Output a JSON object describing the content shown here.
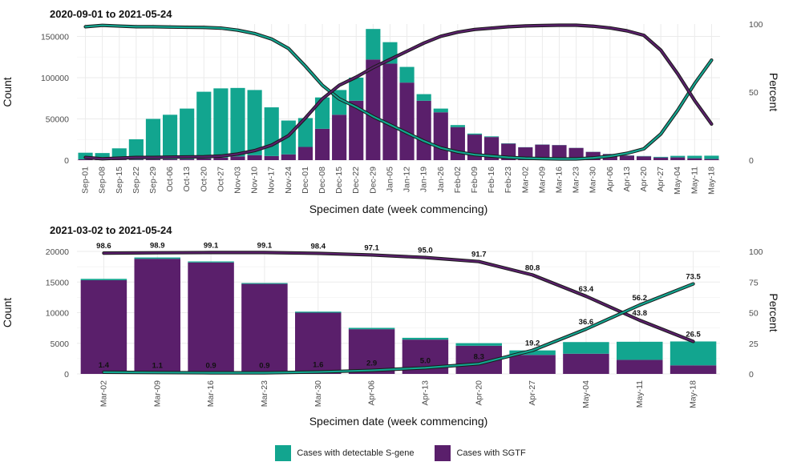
{
  "colors": {
    "sgene": "#12a58f",
    "sgtf": "#5a1f6b",
    "grid": "#ebebeb"
  },
  "legend": {
    "sgene": "Cases with detectable S-gene",
    "sgtf": "Cases with SGTF"
  },
  "chart_data": [
    {
      "type": "bar",
      "stacked": true,
      "title": "2020-09-01 to 2021-05-24",
      "xlabel": "Specimen date (week commencing)",
      "ylabel": "Count",
      "y2label": "Percent",
      "ylim": [
        0,
        165000
      ],
      "yticks": [
        0,
        50000,
        100000,
        150000
      ],
      "y2lim": [
        0,
        100
      ],
      "y2ticks": [
        0,
        50,
        100
      ],
      "categories": [
        "Sep-01",
        "Sep-08",
        "Sep-15",
        "Sep-22",
        "Sep-29",
        "Oct-06",
        "Oct-13",
        "Oct-20",
        "Oct-27",
        "Nov-03",
        "Nov-10",
        "Nov-17",
        "Nov-24",
        "Dec-01",
        "Dec-08",
        "Dec-15",
        "Dec-22",
        "Dec-29",
        "Jan-05",
        "Jan-12",
        "Jan-19",
        "Jan-26",
        "Feb-02",
        "Feb-09",
        "Feb-16",
        "Feb-23",
        "Mar-02",
        "Mar-09",
        "Mar-16",
        "Mar-23",
        "Mar-30",
        "Apr-06",
        "Apr-13",
        "Apr-20",
        "Apr-27",
        "May-04",
        "May-11",
        "May-18"
      ],
      "series": [
        {
          "name": "Cases with SGTF",
          "values": [
            1000,
            800,
            800,
            800,
            1000,
            1200,
            1400,
            2000,
            3000,
            4500,
            6000,
            5000,
            7000,
            16000,
            38000,
            55000,
            72000,
            122000,
            117000,
            94000,
            72000,
            58000,
            40000,
            31000,
            28000,
            20000,
            15500,
            18800,
            18200,
            14800,
            10000,
            7300,
            5500,
            4600,
            3200,
            3300,
            2300,
            1400
          ]
        },
        {
          "name": "Cases with detectable S-gene",
          "values": [
            8000,
            7800,
            13500,
            24500,
            49000,
            53800,
            61100,
            80900,
            84000,
            83000,
            79000,
            59000,
            41000,
            35000,
            38000,
            30000,
            28000,
            37000,
            26000,
            19000,
            8000,
            4500,
            2500,
            1200,
            800,
            400,
            200,
            200,
            160,
            130,
            160,
            200,
            280,
            400,
            780,
            1900,
            3000,
            4000
          ]
        }
      ],
      "lines": [
        {
          "name": "Cases with detectable S-gene",
          "values": [
            98,
            99,
            98.5,
            98,
            98,
            97.8,
            97.6,
            97.5,
            97,
            95.5,
            93,
            89,
            82,
            69,
            55,
            45,
            39,
            32,
            26,
            20,
            14,
            9,
            6,
            4,
            3,
            2,
            1.4,
            1.1,
            0.9,
            0.9,
            1.6,
            2.9,
            5.0,
            8.3,
            19.2,
            36.6,
            56.2,
            73.5
          ]
        },
        {
          "name": "Cases with SGTF",
          "values": [
            2,
            1,
            1.5,
            2,
            2,
            2.2,
            2.4,
            2.5,
            3,
            4.5,
            7,
            11,
            18,
            31,
            45,
            55,
            61,
            68,
            74,
            80,
            86,
            91,
            94,
            96,
            97,
            98,
            98.6,
            98.9,
            99.1,
            99.1,
            98.4,
            97.1,
            95.0,
            91.7,
            80.8,
            63.4,
            43.8,
            26.5
          ]
        }
      ]
    },
    {
      "type": "bar",
      "stacked": true,
      "title": "2021-03-02 to 2021-05-24",
      "xlabel": "Specimen date (week commencing)",
      "ylabel": "Count",
      "y2label": "Percent",
      "ylim": [
        0,
        20000
      ],
      "yticks": [
        0,
        5000,
        10000,
        15000,
        20000
      ],
      "y2lim": [
        0,
        100
      ],
      "y2ticks": [
        0,
        25,
        50,
        75,
        100
      ],
      "categories": [
        "Mar-02",
        "Mar-09",
        "Mar-16",
        "Mar-23",
        "Mar-30",
        "Apr-06",
        "Apr-13",
        "Apr-20",
        "Apr-27",
        "May-04",
        "May-11",
        "May-18"
      ],
      "series": [
        {
          "name": "Cases with SGTF",
          "values": [
            15300,
            18800,
            18200,
            14700,
            10000,
            7300,
            5600,
            4600,
            3100,
            3300,
            2300,
            1400
          ]
        },
        {
          "name": "Cases with detectable S-gene",
          "values": [
            220,
            210,
            165,
            135,
            165,
            220,
            295,
            420,
            740,
            1900,
            2950,
            3900
          ]
        }
      ],
      "lines": [
        {
          "name": "Cases with SGTF",
          "values": [
            98.6,
            98.9,
            99.1,
            99.1,
            98.4,
            97.1,
            95.0,
            91.7,
            80.8,
            63.4,
            43.8,
            26.5
          ],
          "labels": [
            "98.6",
            "98.9",
            "99.1",
            "99.1",
            "98.4",
            "97.1",
            "95.0",
            "91.7",
            "80.8",
            "63.4",
            "43.8",
            "26.5"
          ]
        },
        {
          "name": "Cases with detectable S-gene",
          "values": [
            1.4,
            1.1,
            0.9,
            0.9,
            1.6,
            2.9,
            5.0,
            8.3,
            19.2,
            36.6,
            56.2,
            73.5
          ],
          "labels": [
            "1.4",
            "1.1",
            "0.9",
            "0.9",
            "1.6",
            "2.9",
            "5.0",
            "8.3",
            "19.2",
            "36.6",
            "56.2",
            "73.5"
          ]
        }
      ]
    }
  ]
}
